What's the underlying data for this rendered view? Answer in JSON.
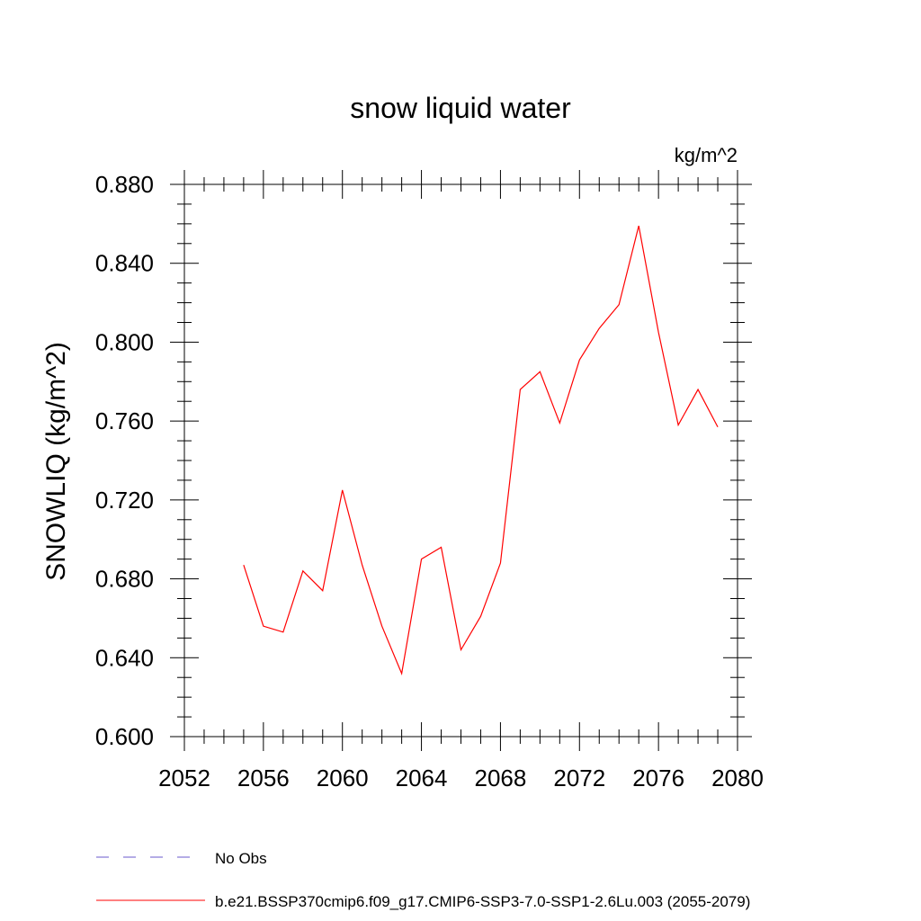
{
  "chart_data": {
    "type": "line",
    "title": "snow liquid water",
    "units": "kg/m^2",
    "ylabel": "SNOWLIQ  (kg/m^2)",
    "xlabel": "",
    "xlim": [
      2052,
      2080
    ],
    "ylim": [
      0.6,
      0.88
    ],
    "x_ticks": [
      2052,
      2056,
      2060,
      2064,
      2068,
      2072,
      2076,
      2080
    ],
    "x_tick_labels": [
      "2052",
      "2056",
      "2060",
      "2064",
      "2068",
      "2072",
      "2076",
      "2080"
    ],
    "y_ticks": [
      0.6,
      0.64,
      0.68,
      0.72,
      0.76,
      0.8,
      0.84,
      0.88
    ],
    "y_tick_labels": [
      "0.600",
      "0.640",
      "0.680",
      "0.720",
      "0.760",
      "0.800",
      "0.840",
      "0.880"
    ],
    "grid": false,
    "legend_position": "bottom-left",
    "series": [
      {
        "name": "b.e21.BSSP370cmip6.f09_g17.CMIP6-SSP3-7.0-SSP1-2.6Lu.003 (2055-2079)",
        "color": "#ff0000",
        "style": "solid",
        "x": [
          2055,
          2056,
          2057,
          2058,
          2059,
          2060,
          2061,
          2062,
          2063,
          2064,
          2065,
          2066,
          2067,
          2068,
          2069,
          2070,
          2071,
          2072,
          2073,
          2074,
          2075,
          2076,
          2077,
          2078,
          2079
        ],
        "values": [
          0.687,
          0.656,
          0.653,
          0.684,
          0.674,
          0.725,
          0.687,
          0.656,
          0.632,
          0.69,
          0.696,
          0.644,
          0.661,
          0.688,
          0.776,
          0.785,
          0.759,
          0.791,
          0.807,
          0.819,
          0.859,
          0.805,
          0.758,
          0.776,
          0.757
        ]
      },
      {
        "name": "No Obs",
        "color": "#6a5acd",
        "style": "dashed",
        "x": [],
        "values": []
      }
    ]
  }
}
